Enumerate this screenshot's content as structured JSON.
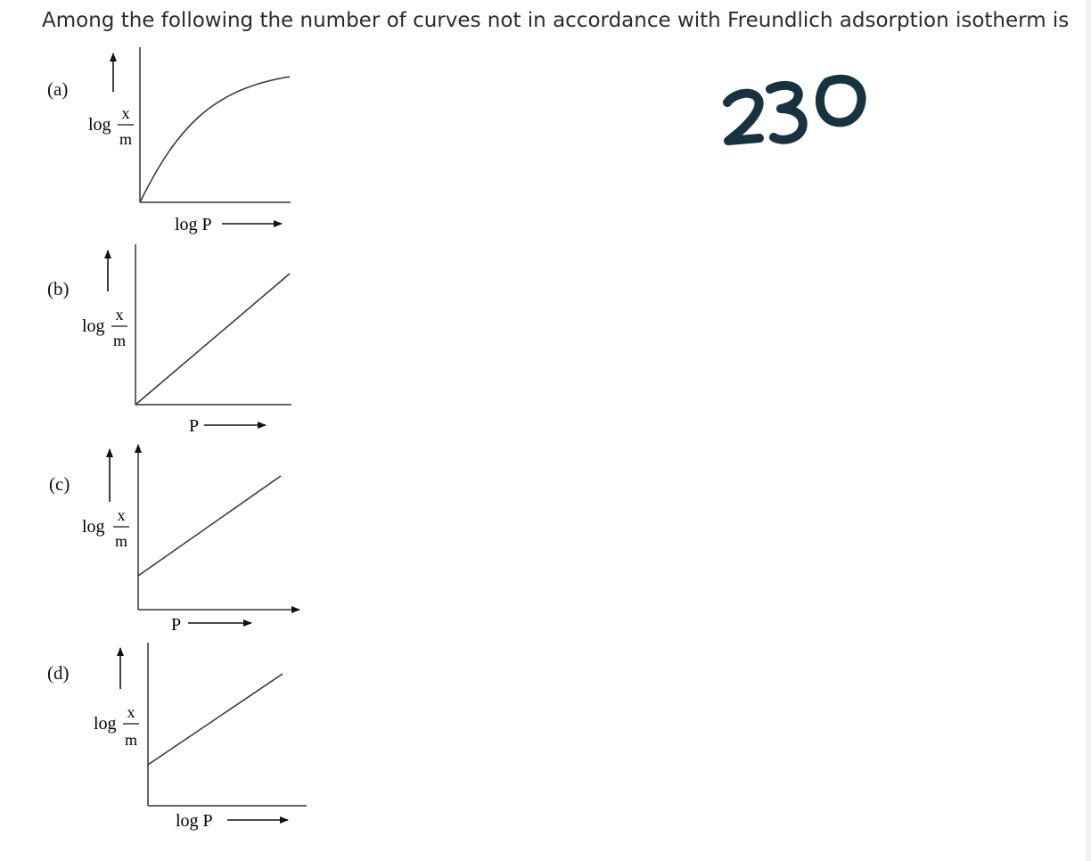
{
  "question": "Among the following the number of curves not in accordance with Freundlich adsorption isotherm is",
  "handwritten_answer": "230",
  "options": [
    {
      "label": "(a)",
      "ylabel_prefix": "log",
      "ylabel_num": "x",
      "ylabel_den": "m",
      "xlabel": "log P",
      "curve": "concave increasing from origin"
    },
    {
      "label": "(b)",
      "ylabel_prefix": "log",
      "ylabel_num": "x",
      "ylabel_den": "m",
      "xlabel": "P",
      "curve": "straight line through origin"
    },
    {
      "label": "(c)",
      "ylabel_prefix": "log",
      "ylabel_num": "x",
      "ylabel_den": "m",
      "xlabel": "P",
      "curve": "straight line with positive intercept"
    },
    {
      "label": "(d)",
      "ylabel_prefix": "log",
      "ylabel_num": "x",
      "ylabel_den": "m",
      "xlabel": "log P",
      "curve": "straight line with positive intercept"
    }
  ],
  "colors": {
    "ink": "#222222",
    "handwriting": "#17333f"
  }
}
